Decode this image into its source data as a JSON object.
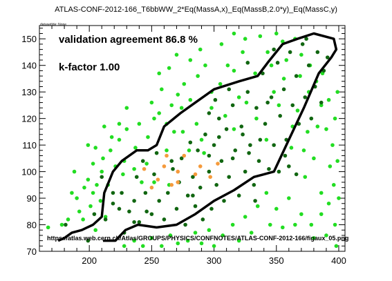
{
  "header": {
    "title": "ATLAS-CONF-2012-166_T6bbWW_2*Eq(MassA,x)_Eq(MassB,2.0*y)_Eq(MassC,y)",
    "dataset_id": "datasetIde: None"
  },
  "chart_data": {
    "type": "scatter",
    "xlim": [
      160,
      405
    ],
    "ylim": [
      70,
      155
    ],
    "xticks": [
      200,
      250,
      300,
      350,
      400
    ],
    "yticks": [
      70,
      80,
      90,
      100,
      110,
      120,
      130,
      140,
      150
    ],
    "annotations": {
      "agreement": "validation agreement 86.8 %",
      "kfactor": "k-factor 1.00",
      "url": "https://atlas.web.cern.ch/Atlas/GROUPS/PHYSICS/CONFNOTES/ATLAS-CONF-2012-166/figaux_05.png"
    },
    "colors": {
      "bright_green": "#22dd22",
      "dark_green": "#116611",
      "orange": "#f59a3c",
      "contour": "#000000"
    },
    "series": [
      {
        "color": "#22dd22",
        "points": [
          [
            167,
            79
          ],
          [
            178,
            80
          ],
          [
            183,
            82
          ],
          [
            186,
            92
          ],
          [
            192,
            85
          ],
          [
            196,
            94
          ],
          [
            195,
            82
          ],
          [
            199,
            97
          ],
          [
            201,
            87
          ],
          [
            203,
            92
          ],
          [
            205,
            78
          ],
          [
            206,
            95
          ],
          [
            210,
            100
          ],
          [
            211,
            105
          ],
          [
            209,
            89
          ],
          [
            213,
            83
          ],
          [
            215,
            95
          ],
          [
            217,
            108
          ],
          [
            221,
            102
          ],
          [
            224,
            112
          ],
          [
            227,
            99
          ],
          [
            230,
            116
          ],
          [
            237,
            109
          ],
          [
            240,
            118
          ],
          [
            242,
            96
          ],
          [
            247,
            113
          ],
          [
            250,
            126
          ],
          [
            252,
            120
          ],
          [
            256,
            122
          ],
          [
            262,
            118
          ],
          [
            266,
            125
          ],
          [
            271,
            129
          ],
          [
            276,
            133
          ],
          [
            281,
            127
          ],
          [
            287,
            136
          ],
          [
            293,
            140
          ],
          [
            298,
            130
          ],
          [
            305,
            133
          ],
          [
            311,
            140
          ],
          [
            316,
            138
          ],
          [
            323,
            145
          ],
          [
            325,
            150
          ],
          [
            333,
            137
          ],
          [
            337,
            151
          ],
          [
            343,
            145
          ],
          [
            346,
            140
          ],
          [
            350,
            152
          ],
          [
            355,
            149
          ],
          [
            358,
            142
          ],
          [
            365,
            150
          ],
          [
            370,
            144
          ],
          [
            377,
            140
          ],
          [
            382,
            134
          ],
          [
            387,
            137
          ],
          [
            392,
            127
          ],
          [
            397,
            120
          ],
          [
            399,
            130
          ],
          [
            395,
            110
          ],
          [
            393,
            102
          ],
          [
            396,
            95
          ],
          [
            392,
            88
          ],
          [
            397,
            80
          ],
          [
            386,
            92
          ],
          [
            380,
            105
          ],
          [
            375,
            115
          ],
          [
            383,
            117
          ],
          [
            367,
            123
          ],
          [
            362,
            109
          ],
          [
            373,
            98
          ],
          [
            370,
            84
          ],
          [
            380,
            75
          ],
          [
            378,
            80
          ],
          [
            390,
            76
          ],
          [
            398,
            72
          ],
          [
            386,
            84
          ],
          [
            360,
            90
          ],
          [
            365,
            80
          ],
          [
            355,
            79
          ],
          [
            350,
            86
          ],
          [
            342,
            92
          ],
          [
            345,
            80
          ],
          [
            335,
            87
          ],
          [
            330,
            77
          ],
          [
            325,
            83
          ],
          [
            320,
            74
          ],
          [
            315,
            80
          ],
          [
            307,
            76
          ],
          [
            300,
            72
          ],
          [
            296,
            78
          ],
          [
            290,
            73
          ],
          [
            285,
            77
          ],
          [
            279,
            74
          ],
          [
            271,
            73
          ],
          [
            265,
            76
          ],
          [
            258,
            72
          ],
          [
            250,
            75
          ],
          [
            243,
            72
          ],
          [
            236,
            74
          ],
          [
            228,
            72
          ],
          [
            252,
            96
          ],
          [
            236,
            101
          ],
          [
            262,
            108
          ],
          [
            275,
            115
          ],
          [
            280,
            108
          ],
          [
            286,
            118
          ],
          [
            290,
            112
          ],
          [
            264,
            95
          ],
          [
            246,
            103
          ],
          [
            228,
            104
          ],
          [
            218,
            113
          ],
          [
            258,
            131
          ],
          [
            281,
            142
          ],
          [
            306,
            148
          ],
          [
            326,
            126
          ],
          [
            348,
            130
          ],
          [
            356,
            135
          ],
          [
            334,
            120
          ],
          [
            342,
            112
          ],
          [
            316,
            116
          ],
          [
            224,
            118
          ],
          [
            212,
            117
          ],
          [
            205,
            109
          ],
          [
            203,
            103
          ],
          [
            190,
            90
          ],
          [
            188,
            100
          ],
          [
            199,
            110
          ],
          [
            256,
            137
          ],
          [
            270,
            144
          ],
          [
            264,
            139
          ],
          [
            289,
            146
          ],
          [
            316,
            152
          ],
          [
            274,
            124
          ],
          [
            230,
            124
          ],
          [
            376,
            130
          ],
          [
            386,
            125
          ],
          [
            390,
            116
          ],
          [
            399,
            104
          ],
          [
            400,
            90
          ],
          [
            372,
            108
          ],
          [
            363,
            117
          ],
          [
            369,
            136
          ],
          [
            352,
            125
          ],
          [
            320,
            128
          ],
          [
            309,
            121
          ],
          [
            298,
            124
          ],
          [
            292,
            107
          ],
          [
            268,
            115
          ]
        ]
      },
      {
        "color": "#116611",
        "points": [
          [
            181,
            80
          ],
          [
            199,
            74
          ],
          [
            204,
            84
          ],
          [
            213,
            82
          ],
          [
            219,
            88
          ],
          [
            224,
            86
          ],
          [
            226,
            92
          ],
          [
            228,
            77
          ],
          [
            232,
            85
          ],
          [
            236,
            89
          ],
          [
            238,
            98
          ],
          [
            240,
            81
          ],
          [
            245,
            92
          ],
          [
            250,
            84
          ],
          [
            252,
            99
          ],
          [
            256,
            89
          ],
          [
            260,
            82
          ],
          [
            263,
            92
          ],
          [
            267,
            101
          ],
          [
            270,
            86
          ],
          [
            272,
            96
          ],
          [
            274,
            105
          ],
          [
            277,
            80
          ],
          [
            279,
            91
          ],
          [
            283,
            98
          ],
          [
            285,
            87
          ],
          [
            287,
            108
          ],
          [
            289,
            94
          ],
          [
            291,
            82
          ],
          [
            293,
            114
          ],
          [
            296,
            100
          ],
          [
            298,
            86
          ],
          [
            300,
            110
          ],
          [
            302,
            95
          ],
          [
            304,
            120
          ],
          [
            306,
            104
          ],
          [
            308,
            89
          ],
          [
            310,
            116
          ],
          [
            312,
            98
          ],
          [
            315,
            125
          ],
          [
            317,
            108
          ],
          [
            320,
            91
          ],
          [
            322,
            117
          ],
          [
            325,
            100
          ],
          [
            327,
            130
          ],
          [
            329,
            110
          ],
          [
            332,
            95
          ],
          [
            334,
            124
          ],
          [
            336,
            104
          ],
          [
            339,
            137
          ],
          [
            341,
            118
          ],
          [
            344,
            101
          ],
          [
            346,
            128
          ],
          [
            348,
            110
          ],
          [
            351,
            141
          ],
          [
            353,
            121
          ],
          [
            356,
            131
          ],
          [
            358,
            112
          ],
          [
            361,
            145
          ],
          [
            363,
            125
          ],
          [
            366,
            136
          ],
          [
            368,
            118
          ],
          [
            371,
            148
          ],
          [
            373,
            128
          ],
          [
            376,
            140
          ],
          [
            378,
            120
          ],
          [
            381,
            132
          ],
          [
            383,
            145
          ],
          [
            386,
            126
          ],
          [
            388,
            138
          ],
          [
            391,
            143
          ],
          [
            357,
            106
          ],
          [
            333,
            89
          ],
          [
            323,
            114
          ],
          [
            304,
            113
          ],
          [
            315,
            105
          ],
          [
            296,
            122
          ],
          [
            327,
            141
          ],
          [
            348,
            146
          ],
          [
            360,
            102
          ],
          [
            374,
            150
          ],
          [
            281,
            111
          ],
          [
            266,
            104
          ],
          [
            243,
            104
          ],
          [
            254,
            107
          ],
          [
            219,
            92
          ],
          [
            210,
            98
          ],
          [
            236,
            81
          ],
          [
            246,
            85
          ],
          [
            301,
            127
          ],
          [
            312,
            131
          ],
          [
            337,
            112
          ],
          [
            352,
            100
          ],
          [
            366,
            99
          ],
          [
            296,
            106
          ],
          [
            283,
            91
          ],
          [
            343,
            126
          ],
          [
            328,
            107
          ]
        ]
      },
      {
        "color": "#f59a3c",
        "points": [
          [
            244,
            101
          ],
          [
            255,
            97
          ],
          [
            260,
            102
          ],
          [
            266,
            95
          ],
          [
            271,
            100
          ],
          [
            276,
            106
          ],
          [
            285,
            99
          ],
          [
            289,
            102
          ],
          [
            297,
            98
          ],
          [
            303,
            103
          ],
          [
            250,
            94
          ],
          [
            271,
            96
          ],
          [
            262,
            106
          ]
        ]
      }
    ],
    "contour": [
      [
        211,
        74
      ],
      [
        221,
        74
      ],
      [
        229,
        78
      ],
      [
        239,
        80
      ],
      [
        254,
        79
      ],
      [
        270,
        80
      ],
      [
        285,
        84
      ],
      [
        300,
        89
      ],
      [
        316,
        93
      ],
      [
        332,
        98
      ],
      [
        348,
        100
      ],
      [
        360,
        112
      ],
      [
        372,
        124
      ],
      [
        384,
        137
      ],
      [
        394,
        143
      ],
      [
        398,
        146
      ],
      [
        396,
        150
      ],
      [
        380,
        152
      ],
      [
        367,
        150
      ],
      [
        355,
        148
      ],
      [
        343,
        141
      ],
      [
        335,
        136
      ],
      [
        320,
        134
      ],
      [
        300,
        131
      ],
      [
        285,
        126
      ],
      [
        273,
        122
      ],
      [
        260,
        117
      ],
      [
        254,
        110
      ],
      [
        247,
        108
      ],
      [
        238,
        108
      ],
      [
        226,
        104
      ],
      [
        219,
        100
      ],
      [
        212,
        92
      ],
      [
        210,
        83
      ],
      [
        203,
        80
      ],
      [
        194,
        78
      ],
      [
        186,
        77
      ],
      [
        180,
        75
      ],
      [
        175,
        74
      ]
    ]
  }
}
